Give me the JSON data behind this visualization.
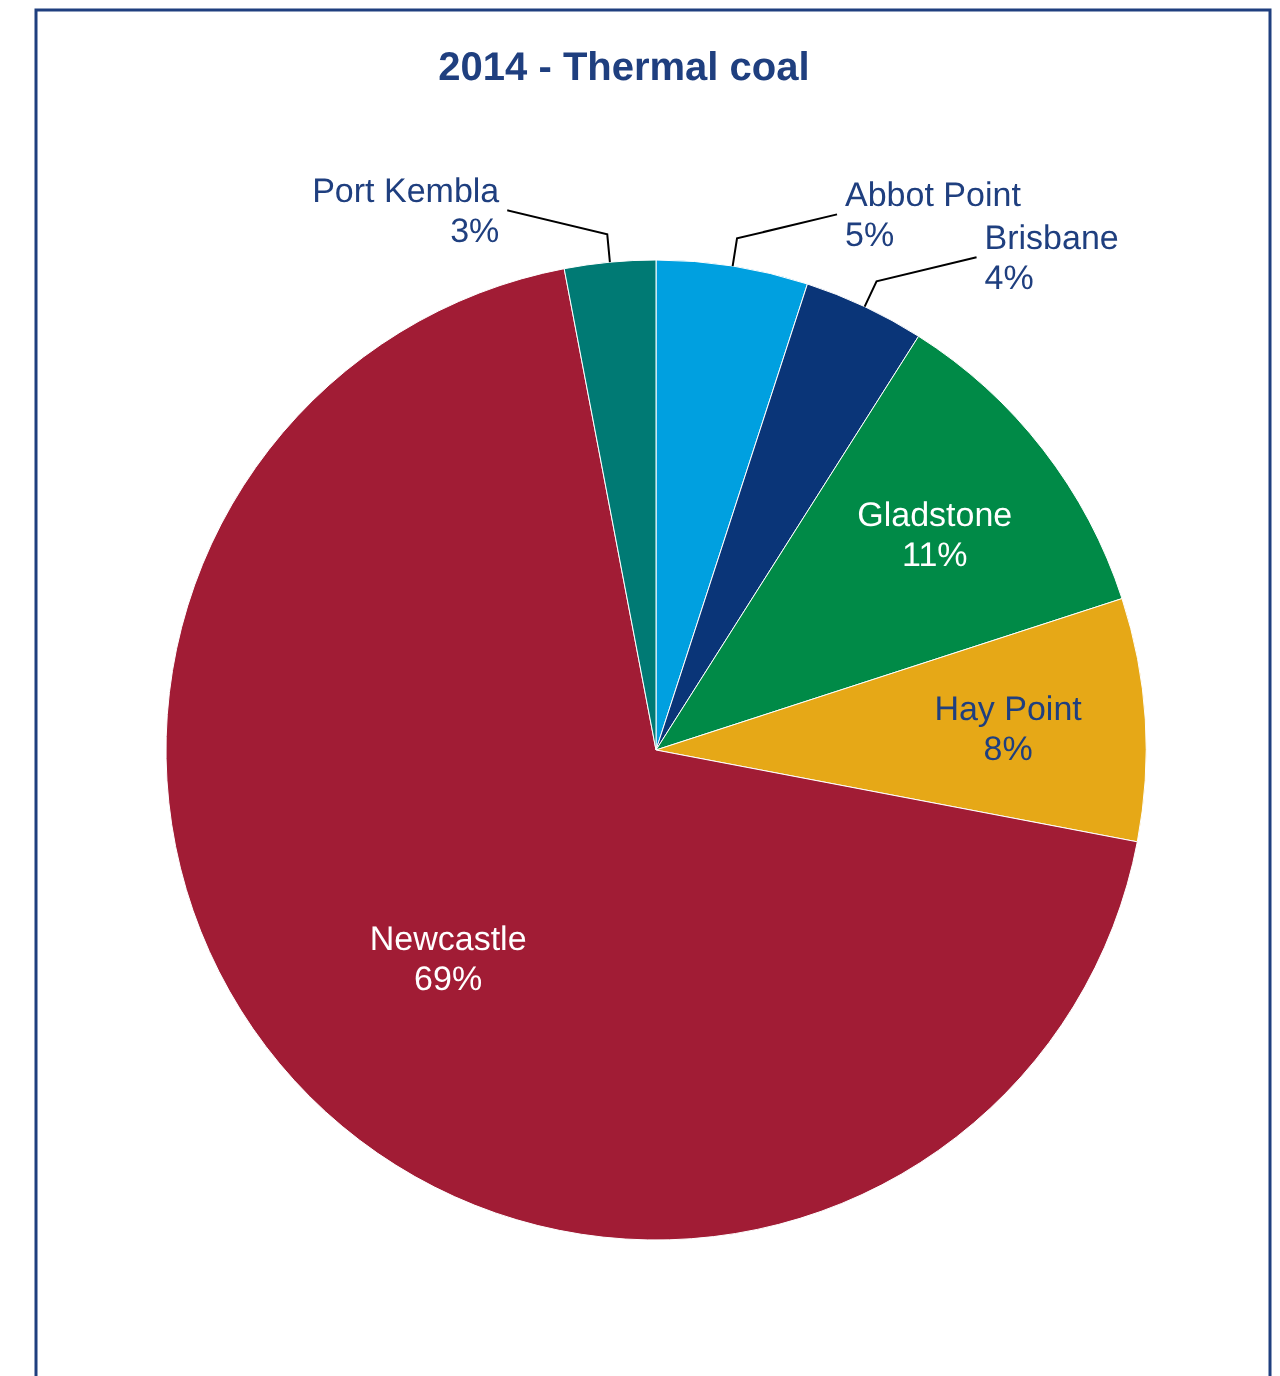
{
  "chart_data": {
    "type": "pie",
    "title": "2014 - Thermal coal",
    "categories": [
      "Abbot Point",
      "Brisbane",
      "Gladstone",
      "Hay Point",
      "Newcastle",
      "Port Kembla"
    ],
    "values": [
      5,
      4,
      11,
      8,
      69,
      3
    ],
    "colors": [
      "#00a0e0",
      "#0a3578",
      "#008a47",
      "#e6a817",
      "#a11c35",
      "#007a74"
    ],
    "value_labels": [
      "5%",
      "4%",
      "11%",
      "8%",
      "69%",
      "3%"
    ]
  }
}
